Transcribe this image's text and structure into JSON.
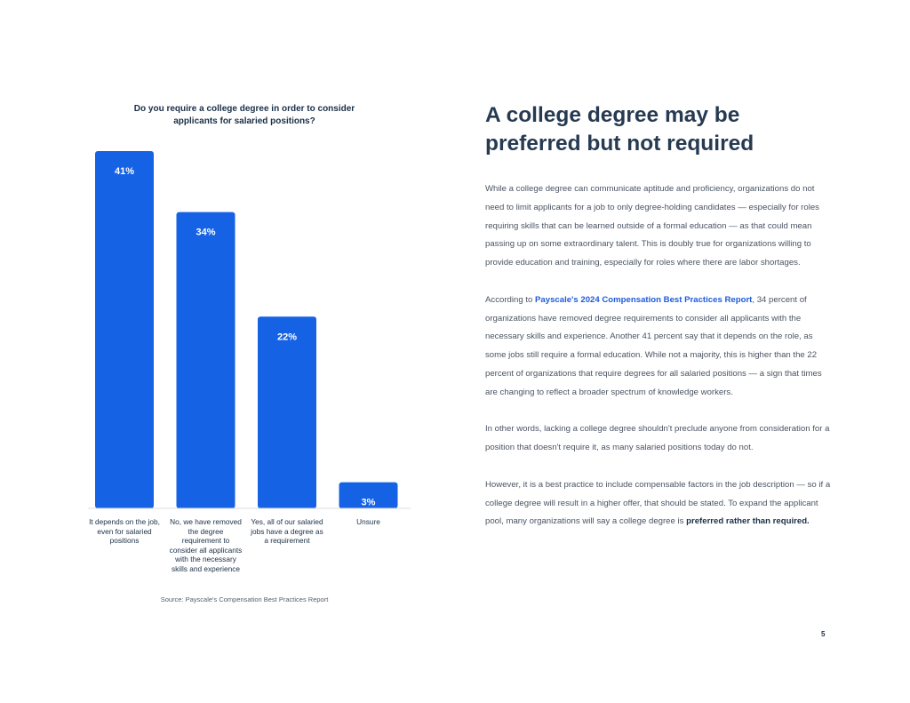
{
  "chart_data": {
    "type": "bar",
    "title": "Do you require a college degree in order to consider applicants for salaried positions?",
    "categories": [
      "It depends on the job, even for salaried positions",
      "No, we have removed the degree requirement to consider all applicants with the necessary skills and experience",
      "Yes, all of our salaried jobs have a degree as a requirement",
      "Unsure"
    ],
    "values": [
      41,
      34,
      22,
      3
    ],
    "value_labels": [
      "41%",
      "34%",
      "22%",
      "3%"
    ],
    "ylim": [
      0,
      41
    ],
    "bar_color": "#1662e5",
    "grid": false,
    "source": "Source: Payscale's Compensation Best Practices Report"
  },
  "article": {
    "headline": "A college degree may be preferred but not required",
    "p1": "While a college degree can communicate aptitude and proficiency, organizations do not need to limit applicants for a job to only degree-holding candidates — especially for roles requiring skills that can be learned outside of a formal education — as that could mean passing up on some extraordinary talent. This is doubly true for organizations willing to provide education and training, especially for roles where there are labor shortages.",
    "p2_before": "According to ",
    "p2_link": "Payscale's 2024 Compensation Best Practices Report",
    "p2_after": ", 34 percent of organizations have removed degree requirements to consider all applicants with the necessary skills and experience. Another 41 percent say that it depends on the role, as some jobs still require a formal education. While not a majority, this is higher than the 22 percent of organizations that require degrees for all salaried positions — a sign that times are changing to reflect a broader spectrum of knowledge workers.",
    "p3": "In other words, lacking a college degree shouldn't preclude anyone from consideration for a position that doesn't require it, as many salaried positions today do not.",
    "p4_before": "However, it is a best practice to include compensable factors in the job description — so if a college degree will result in a higher offer, that should be stated. To expand the applicant pool, many organizations will say a college degree is ",
    "p4_bold": "preferred rather than required."
  },
  "page_number": "5",
  "colors": {
    "link": "#1e5bdc",
    "headline": "#263a52"
  }
}
